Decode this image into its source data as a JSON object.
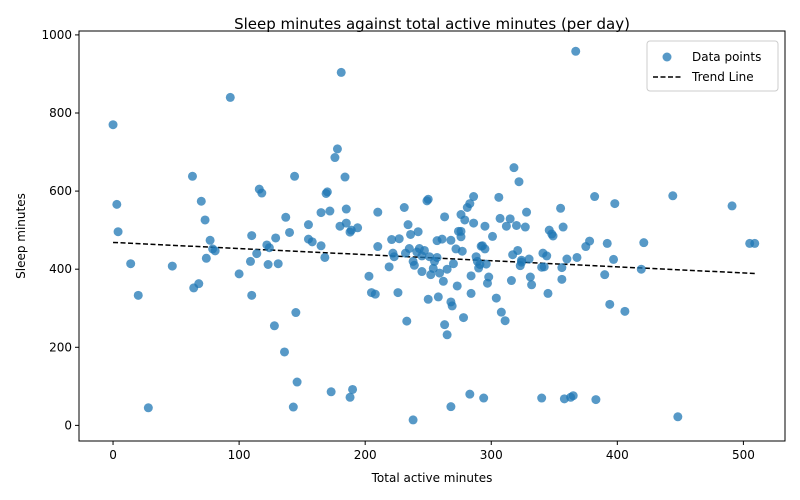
{
  "chart_data": {
    "type": "scatter",
    "title": "Sleep minutes against total active minutes (per day)",
    "xlabel": "Total active minutes",
    "ylabel": "Sleep minutes",
    "xlim": [
      -27,
      533
    ],
    "ylim": [
      -40,
      1010
    ],
    "xticks": [
      0,
      100,
      200,
      300,
      400,
      500
    ],
    "yticks": [
      0,
      200,
      400,
      600,
      800,
      1000
    ],
    "grid": false,
    "legend_position": "top-right",
    "colors": {
      "points": "#1f77b4",
      "trend": "#000000"
    },
    "series": [
      {
        "name": "Data points",
        "points": [
          [
            0,
            770
          ],
          [
            3,
            566
          ],
          [
            4,
            496
          ],
          [
            14,
            414
          ],
          [
            20,
            333
          ],
          [
            28,
            45
          ],
          [
            47,
            408
          ],
          [
            63,
            638
          ],
          [
            64,
            352
          ],
          [
            68,
            363
          ],
          [
            70,
            574
          ],
          [
            73,
            526
          ],
          [
            74,
            428
          ],
          [
            77,
            474
          ],
          [
            79,
            452
          ],
          [
            81,
            447
          ],
          [
            93,
            840
          ],
          [
            100,
            388
          ],
          [
            109,
            420
          ],
          [
            110,
            333
          ],
          [
            110,
            486
          ],
          [
            114,
            440
          ],
          [
            116,
            605
          ],
          [
            118,
            595
          ],
          [
            122,
            462
          ],
          [
            123,
            412
          ],
          [
            124,
            455
          ],
          [
            128,
            255
          ],
          [
            129,
            480
          ],
          [
            131,
            414
          ],
          [
            136,
            188
          ],
          [
            137,
            533
          ],
          [
            140,
            494
          ],
          [
            143,
            47
          ],
          [
            144,
            638
          ],
          [
            145,
            289
          ],
          [
            146,
            111
          ],
          [
            155,
            514
          ],
          [
            155,
            477
          ],
          [
            158,
            470
          ],
          [
            165,
            460
          ],
          [
            165,
            545
          ],
          [
            168,
            430
          ],
          [
            169,
            594
          ],
          [
            170,
            598
          ],
          [
            172,
            549
          ],
          [
            173,
            86
          ],
          [
            176,
            686
          ],
          [
            178,
            708
          ],
          [
            180,
            510
          ],
          [
            181,
            904
          ],
          [
            184,
            636
          ],
          [
            185,
            518
          ],
          [
            185,
            554
          ],
          [
            188,
            72
          ],
          [
            188,
            495
          ],
          [
            189,
            500
          ],
          [
            190,
            92
          ],
          [
            194,
            506
          ],
          [
            203,
            382
          ],
          [
            205,
            340
          ],
          [
            208,
            336
          ],
          [
            210,
            458
          ],
          [
            210,
            546
          ],
          [
            219,
            406
          ],
          [
            221,
            476
          ],
          [
            222,
            441
          ],
          [
            223,
            432
          ],
          [
            226,
            340
          ],
          [
            227,
            478
          ],
          [
            231,
            558
          ],
          [
            232,
            441
          ],
          [
            233,
            267
          ],
          [
            234,
            514
          ],
          [
            235,
            453
          ],
          [
            236,
            489
          ],
          [
            238,
            14
          ],
          [
            238,
            420
          ],
          [
            239,
            410
          ],
          [
            241,
            444
          ],
          [
            242,
            496
          ],
          [
            243,
            453
          ],
          [
            245,
            394
          ],
          [
            245,
            434
          ],
          [
            247,
            448
          ],
          [
            249,
            575
          ],
          [
            250,
            579
          ],
          [
            250,
            323
          ],
          [
            251,
            432
          ],
          [
            252,
            386
          ],
          [
            254,
            402
          ],
          [
            255,
            420
          ],
          [
            257,
            430
          ],
          [
            257,
            473
          ],
          [
            258,
            329
          ],
          [
            259,
            390
          ],
          [
            261,
            477
          ],
          [
            262,
            369
          ],
          [
            263,
            258
          ],
          [
            263,
            534
          ],
          [
            265,
            232
          ],
          [
            265,
            400
          ],
          [
            268,
            48
          ],
          [
            268,
            474
          ],
          [
            268,
            316
          ],
          [
            269,
            306
          ],
          [
            270,
            414
          ],
          [
            272,
            452
          ],
          [
            273,
            357
          ],
          [
            274,
            497
          ],
          [
            276,
            483
          ],
          [
            276,
            540
          ],
          [
            276,
            497
          ],
          [
            277,
            446
          ],
          [
            278,
            276
          ],
          [
            279,
            526
          ],
          [
            281,
            558
          ],
          [
            283,
            568
          ],
          [
            283,
            80
          ],
          [
            284,
            383
          ],
          [
            284,
            338
          ],
          [
            286,
            586
          ],
          [
            286,
            518
          ],
          [
            288,
            432
          ],
          [
            289,
            420
          ],
          [
            290,
            403
          ],
          [
            291,
            412
          ],
          [
            292,
            459
          ],
          [
            293,
            460
          ],
          [
            295,
            452
          ],
          [
            294,
            70
          ],
          [
            295,
            510
          ],
          [
            296,
            413
          ],
          [
            297,
            364
          ],
          [
            298,
            380
          ],
          [
            301,
            484
          ],
          [
            304,
            326
          ],
          [
            306,
            584
          ],
          [
            307,
            530
          ],
          [
            308,
            290
          ],
          [
            311,
            268
          ],
          [
            312,
            510
          ],
          [
            315,
            529
          ],
          [
            316,
            371
          ],
          [
            317,
            437
          ],
          [
            318,
            660
          ],
          [
            320,
            512
          ],
          [
            321,
            448
          ],
          [
            322,
            624
          ],
          [
            323,
            409
          ],
          [
            324,
            423
          ],
          [
            324,
            418
          ],
          [
            327,
            508
          ],
          [
            328,
            546
          ],
          [
            330,
            426
          ],
          [
            331,
            380
          ],
          [
            332,
            360
          ],
          [
            340,
            70
          ],
          [
            340,
            405
          ],
          [
            341,
            441
          ],
          [
            342,
            406
          ],
          [
            344,
            434
          ],
          [
            345,
            338
          ],
          [
            346,
            500
          ],
          [
            348,
            490
          ],
          [
            349,
            485
          ],
          [
            355,
            556
          ],
          [
            356,
            404
          ],
          [
            356,
            374
          ],
          [
            357,
            508
          ],
          [
            358,
            68
          ],
          [
            360,
            426
          ],
          [
            363,
            72
          ],
          [
            365,
            76
          ],
          [
            367,
            958
          ],
          [
            368,
            430
          ],
          [
            375,
            458
          ],
          [
            378,
            472
          ],
          [
            382,
            586
          ],
          [
            383,
            66
          ],
          [
            390,
            386
          ],
          [
            392,
            466
          ],
          [
            394,
            310
          ],
          [
            397,
            425
          ],
          [
            398,
            568
          ],
          [
            406,
            292
          ],
          [
            419,
            400
          ],
          [
            421,
            468
          ],
          [
            444,
            588
          ],
          [
            448,
            22
          ],
          [
            491,
            562
          ],
          [
            505,
            466
          ],
          [
            509,
            466
          ]
        ]
      },
      {
        "name": "Trend Line",
        "line": [
          [
            0,
            468.5
          ],
          [
            509,
            389
          ]
        ],
        "style": "dashed"
      }
    ]
  }
}
